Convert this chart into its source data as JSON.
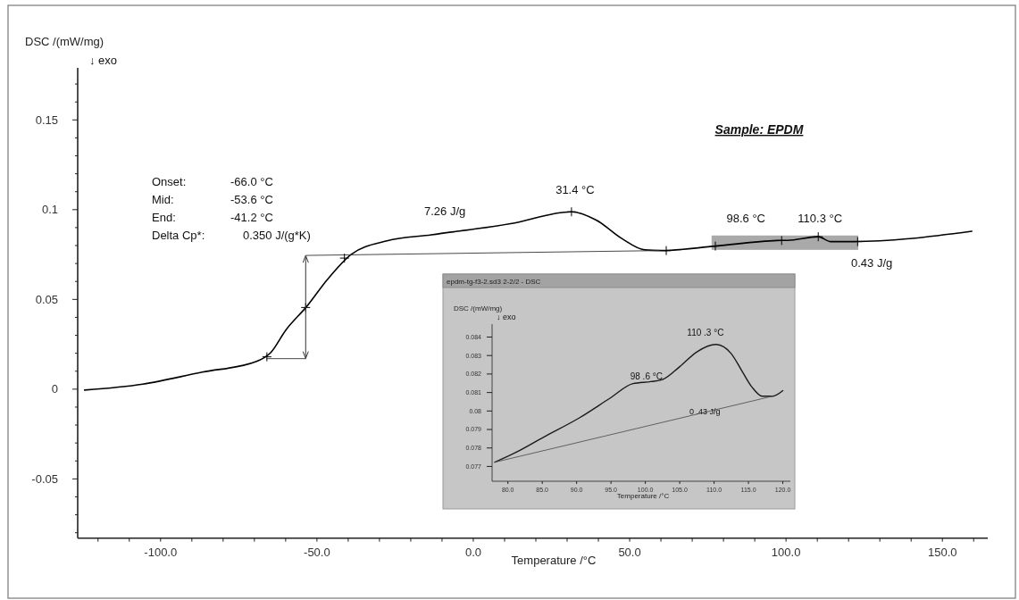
{
  "chart_data": [
    {
      "type": "line",
      "title": "Sample: EPDM",
      "xlabel": "Temperature /°C",
      "ylabel": "DSC /(mW/mg)",
      "annotations": [
        "↓ exo",
        "Onset:",
        "-66.0 °C",
        "Mid:",
        "-53.6 °C",
        "End:",
        "-41.2 °C",
        "Delta Cp*:",
        "0.350 J/(g*K)",
        "7.26 J/g",
        "0.43 J/g",
        {
          "text": "31.4 °C",
          "x": 31.4,
          "y": 0.0988
        },
        {
          "text": "98.6 °C",
          "x": 98.6,
          "y": 0.0828
        },
        {
          "text": "110.3 °C",
          "x": 110.3,
          "y": 0.0849
        }
      ],
      "series": [
        {
          "color": "#000000",
          "x": [
            -124.3,
            -105.7,
            -86.7,
            -69.5,
            -64.8,
            -60,
            -53.3,
            -46.7,
            -39,
            -27.6,
            -13.4,
            11.9,
            31.4,
            39.3,
            47.6,
            54.8,
            60.1,
            77.4,
            97,
            100.5,
            110.3,
            114.3,
            121.4,
            159.4
          ],
          "values": [
            -0.0005,
            0.0028,
            0.0095,
            0.0153,
            0.0203,
            0.0328,
            0.046,
            0.061,
            0.0751,
            0.0826,
            0.086,
            0.0922,
            0.0988,
            0.0942,
            0.0838,
            0.0776,
            0.0772,
            0.0797,
            0.0828,
            0.0829,
            0.0849,
            0.0822,
            0.0822,
            0.088
          ]
        },
        {
          "color": "#333333",
          "x": [
            -53.4,
            59.4
          ],
          "values": [
            0.0745,
            0.0772
          ]
        },
        {
          "color": "#333333",
          "x": [
            -66,
            -53.6
          ],
          "values": [
            0.017,
            0.017
          ]
        },
        {
          "type": "scatter",
          "marker": "cross",
          "color": "#000000",
          "x": [
            -66,
            -53.6,
            -41.2,
            31.4,
            61.7,
            77.4,
            98.6,
            110.3,
            122.9
          ],
          "values": [
            0.018,
            0.0455,
            0.073,
            0.0988,
            0.0772,
            0.0797,
            0.0828,
            0.0849,
            0.0822
          ]
        }
      ],
      "xlim": [
        -126.5,
        164.5
      ],
      "ylim": [
        -0.083,
        0.179
      ],
      "xticks": [
        {
          "value": -120,
          "label": null
        },
        {
          "value": -110,
          "label": null
        },
        {
          "value": -100,
          "label": "-100.0"
        },
        {
          "value": -90,
          "label": null
        },
        {
          "value": -80,
          "label": null
        },
        {
          "value": -70,
          "label": null
        },
        {
          "value": -60,
          "label": null
        },
        {
          "value": -50,
          "label": "-50.0"
        },
        {
          "value": -40,
          "label": null
        },
        {
          "value": -30,
          "label": null
        },
        {
          "value": -20,
          "label": null
        },
        {
          "value": -10,
          "label": null
        },
        {
          "value": 0,
          "label": "0.0"
        },
        {
          "value": 10,
          "label": null
        },
        {
          "value": 20,
          "label": null
        },
        {
          "value": 30,
          "label": null
        },
        {
          "value": 40,
          "label": null
        },
        {
          "value": 50,
          "label": "50.0"
        },
        {
          "value": 60,
          "label": null
        },
        {
          "value": 70,
          "label": null
        },
        {
          "value": 80,
          "label": null
        },
        {
          "value": 90,
          "label": null
        },
        {
          "value": 100,
          "label": "100.0"
        },
        {
          "value": 110,
          "label": null
        },
        {
          "value": 120,
          "label": null
        },
        {
          "value": 130,
          "label": null
        },
        {
          "value": 140,
          "label": null
        },
        {
          "value": 150,
          "label": "150.0"
        },
        {
          "value": 160,
          "label": null
        }
      ],
      "yticks": [
        {
          "value": -0.08,
          "label": null
        },
        {
          "value": -0.07,
          "label": null
        },
        {
          "value": -0.06,
          "label": null
        },
        -0.05,
        {
          "value": -0.04,
          "label": null
        },
        {
          "value": -0.03,
          "label": null
        },
        {
          "value": -0.02,
          "label": null
        },
        {
          "value": -0.01,
          "label": null
        },
        0,
        {
          "value": 0.01,
          "label": null
        },
        {
          "value": 0.02,
          "label": null
        },
        {
          "value": 0.03,
          "label": null
        },
        {
          "value": 0.04,
          "label": null
        },
        0.05,
        {
          "value": 0.06,
          "label": null
        },
        {
          "value": 0.07,
          "label": null
        },
        {
          "value": 0.08,
          "label": null
        },
        {
          "value": 0.09,
          "label": null
        },
        0.1,
        {
          "value": 0.11,
          "label": null
        },
        {
          "value": 0.12,
          "label": null
        },
        {
          "value": 0.13,
          "label": null
        },
        {
          "value": 0.14,
          "label": null
        },
        0.15,
        {
          "value": 0.16,
          "label": null
        },
        {
          "value": 0.17,
          "label": null
        }
      ]
    },
    {
      "type": "line",
      "title": "epdm-tg-f3-2.sd3 2-2/2 - DSC",
      "xlabel": "Temperature /°C",
      "ylabel": "DSC /(mW/mg)",
      "annotations": [
        "↓ exo",
        "0 .43 J/g",
        {
          "text": "98 .6 °C",
          "x": 98.6,
          "y": 0.0815
        },
        {
          "text": "110 .3 °C",
          "x": 110.3,
          "y": 0.0836
        }
      ],
      "series": [
        {
          "color": "#1a1a1a",
          "x": [
            78.1,
            81.3,
            85.2,
            90.4,
            94.8,
            98.2,
            100.8,
            102.5,
            105,
            107.5,
            110.3,
            112.5,
            114,
            115.5,
            117,
            118.5,
            120
          ],
          "values": [
            0.07723,
            0.07779,
            0.07859,
            0.07963,
            0.08068,
            0.08148,
            0.08159,
            0.0817,
            0.0824,
            0.0832,
            0.0836,
            0.0831,
            0.0822,
            0.0813,
            0.0808,
            0.0808,
            0.0811
          ]
        },
        {
          "color": "#555555",
          "x": [
            78.1,
            118.5
          ],
          "values": [
            0.07723,
            0.0808
          ]
        }
      ],
      "xlim": [
        77.7,
        121.1
      ],
      "ylim": [
        0.0762,
        0.0847
      ],
      "xticks": [
        {
          "value": 80,
          "label": "80.0"
        },
        {
          "value": 85,
          "label": "85.0"
        },
        {
          "value": 90,
          "label": "90.0"
        },
        {
          "value": 95,
          "label": "95.0"
        },
        {
          "value": 100,
          "label": "100.0"
        },
        {
          "value": 105,
          "label": "105.0"
        },
        {
          "value": 110,
          "label": "110.0"
        },
        {
          "value": 115,
          "label": "115.0"
        },
        {
          "value": 120,
          "label": "120.0"
        }
      ],
      "yticks": [
        0.077,
        0.078,
        0.079,
        0.08,
        0.081,
        0.082,
        0.083,
        0.084
      ]
    }
  ]
}
